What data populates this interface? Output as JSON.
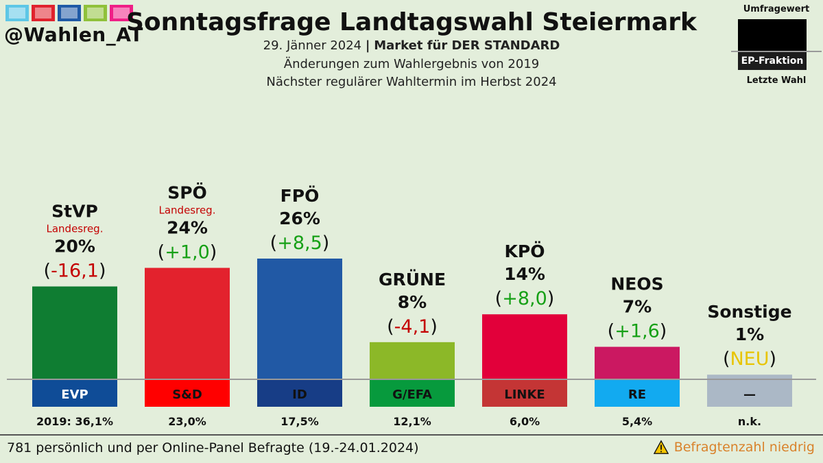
{
  "header": {
    "handle": "@Wahlen_AT",
    "logo_colors": [
      "#5ec7e6",
      "#e0222d",
      "#1f5aa6",
      "#8fc13a",
      "#ef1f86"
    ],
    "title": "Sonntagsfrage Landtagswahl Steiermark",
    "date": "29. Jänner 2024",
    "separator": "|",
    "institute": "Market für DER STANDARD",
    "line2": "Änderungen zum Wahlergebnis von 2019",
    "line3": "Nächster regulärer Wahltermin im Herbst 2024"
  },
  "legend": {
    "top": "Umfragewert",
    "middle": "EP-Fraktion",
    "bottom": "Letzte Wahl"
  },
  "footer": {
    "left": "781 persönlich und per Online-Panel Befragte (19.-24.01.2024)",
    "right": "Befragtenzahl niedrig"
  },
  "chart_data": {
    "type": "bar",
    "title": "Sonntagsfrage Landtagswahl Steiermark",
    "ylim": [
      0,
      30
    ],
    "categories": [
      "StVP",
      "SPÖ",
      "FPÖ",
      "GRÜNE",
      "KPÖ",
      "NEOS",
      "Sonstige"
    ],
    "values": [
      20,
      24,
      26,
      8,
      14,
      7,
      1
    ],
    "bars": [
      {
        "party": "StVP",
        "note": "Landesreg.",
        "value": 20,
        "value_label": "20%",
        "change": "-16,1",
        "change_sign": "neg",
        "fraction": "EVP",
        "last": "2019: 36,1%",
        "color": "#0f7d32",
        "frac_color": "#0f4c97",
        "frac_text": "#ffffff"
      },
      {
        "party": "SPÖ",
        "note": "Landesreg.",
        "value": 24,
        "value_label": "24%",
        "change": "+1,0",
        "change_sign": "pos",
        "fraction": "S&D",
        "last": "23,0%",
        "color": "#e3222d",
        "frac_color": "#ff0000",
        "frac_text": "#111111"
      },
      {
        "party": "FPÖ",
        "note": "",
        "value": 26,
        "value_label": "26%",
        "change": "+8,5",
        "change_sign": "pos",
        "fraction": "ID",
        "last": "17,5%",
        "color": "#2159a5",
        "frac_color": "#173d86",
        "frac_text": "#111111"
      },
      {
        "party": "GRÜNE",
        "note": "",
        "value": 8,
        "value_label": "8%",
        "change": "-4,1",
        "change_sign": "neg",
        "fraction": "G/EFA",
        "last": "12,1%",
        "color": "#8cb828",
        "frac_color": "#079a3d",
        "frac_text": "#111111"
      },
      {
        "party": "KPÖ",
        "note": "",
        "value": 14,
        "value_label": "14%",
        "change": "+8,0",
        "change_sign": "pos",
        "fraction": "LINKE",
        "last": "6,0%",
        "color": "#e2003a",
        "frac_color": "#c43535",
        "frac_text": "#111111"
      },
      {
        "party": "NEOS",
        "note": "",
        "value": 7,
        "value_label": "7%",
        "change": "+1,6",
        "change_sign": "pos",
        "fraction": "RE",
        "last": "5,4%",
        "color": "#cb1861",
        "frac_color": "#12aaf0",
        "frac_text": "#111111"
      },
      {
        "party": "Sonstige",
        "note": "",
        "value": 1,
        "value_label": "1%",
        "change": "NEU",
        "change_sign": "new",
        "fraction": "—",
        "last": "n.k.",
        "color": "#abb8c6",
        "frac_color": "#abb8c6",
        "frac_text": "#111111"
      }
    ],
    "colors": {
      "pos": "#16a016",
      "neg": "#c40000",
      "new": "#e8c400",
      "note": "#c40000"
    }
  }
}
